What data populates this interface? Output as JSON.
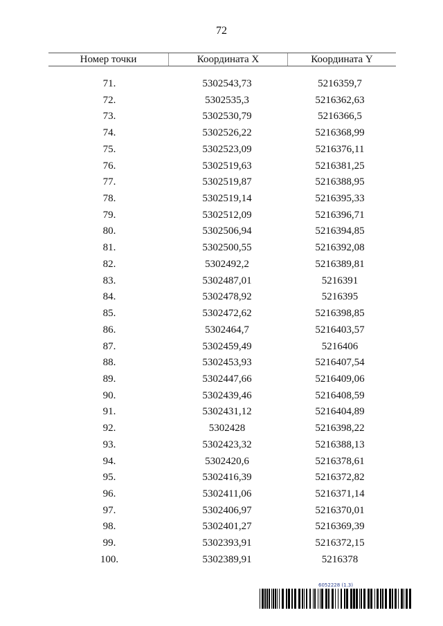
{
  "page_number": "72",
  "table": {
    "headers": [
      "Номер точки",
      "Координата X",
      "Координата Y"
    ],
    "rows": [
      [
        "71.",
        "5302543,73",
        "5216359,7"
      ],
      [
        "72.",
        "5302535,3",
        "5216362,63"
      ],
      [
        "73.",
        "5302530,79",
        "5216366,5"
      ],
      [
        "74.",
        "5302526,22",
        "5216368,99"
      ],
      [
        "75.",
        "5302523,09",
        "5216376,11"
      ],
      [
        "76.",
        "5302519,63",
        "5216381,25"
      ],
      [
        "77.",
        "5302519,87",
        "5216388,95"
      ],
      [
        "78.",
        "5302519,14",
        "5216395,33"
      ],
      [
        "79.",
        "5302512,09",
        "5216396,71"
      ],
      [
        "80.",
        "5302506,94",
        "5216394,85"
      ],
      [
        "81.",
        "5302500,55",
        "5216392,08"
      ],
      [
        "82.",
        "5302492,2",
        "5216389,81"
      ],
      [
        "83.",
        "5302487,01",
        "5216391"
      ],
      [
        "84.",
        "5302478,92",
        "5216395"
      ],
      [
        "85.",
        "5302472,62",
        "5216398,85"
      ],
      [
        "86.",
        "5302464,7",
        "5216403,57"
      ],
      [
        "87.",
        "5302459,49",
        "5216406"
      ],
      [
        "88.",
        "5302453,93",
        "5216407,54"
      ],
      [
        "89.",
        "5302447,66",
        "5216409,06"
      ],
      [
        "90.",
        "5302439,46",
        "5216408,59"
      ],
      [
        "91.",
        "5302431,12",
        "5216404,89"
      ],
      [
        "92.",
        "5302428",
        "5216398,22"
      ],
      [
        "93.",
        "5302423,32",
        "5216388,13"
      ],
      [
        "94.",
        "5302420,6",
        "5216378,61"
      ],
      [
        "95.",
        "5302416,39",
        "5216372,82"
      ],
      [
        "96.",
        "5302411,06",
        "5216371,14"
      ],
      [
        "97.",
        "5302406,97",
        "5216370,01"
      ],
      [
        "98.",
        "5302401,27",
        "5216369,39"
      ],
      [
        "99.",
        "5302393,91",
        "5216372,15"
      ],
      [
        "100.",
        "5302389,91",
        "5216378"
      ]
    ]
  },
  "barcode": {
    "label": "6052228 (1.3)",
    "label_color": "#2a3f8f"
  }
}
